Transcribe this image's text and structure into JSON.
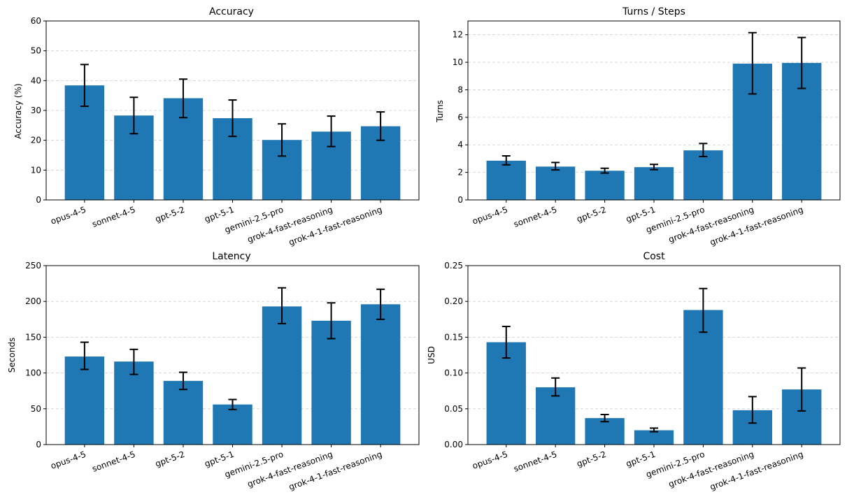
{
  "chart_data": [
    {
      "type": "bar",
      "title": "Accuracy",
      "xlabel": "",
      "ylabel": "Accuracy (%)",
      "ylim": [
        0,
        60
      ],
      "yticks": [
        0,
        10,
        20,
        30,
        40,
        50,
        60
      ],
      "ytick_labels": [
        "0",
        "10",
        "20",
        "30",
        "40",
        "50",
        "60"
      ],
      "grid": true,
      "color": "#1f77b4",
      "categories": [
        "opus-4-5",
        "sonnet-4-5",
        "gpt-5-2",
        "gpt-5-1",
        "gemini-2.5-pro",
        "grok-4-fast-reasoning",
        "grok-4-1-fast-reasoning"
      ],
      "values": [
        38.4,
        28.3,
        34.1,
        27.4,
        20.1,
        22.9,
        24.7
      ],
      "error_low": [
        31.4,
        22.2,
        27.6,
        21.3,
        14.7,
        17.9,
        20.0
      ],
      "error_high": [
        45.4,
        34.4,
        40.5,
        33.5,
        25.5,
        28.1,
        29.5
      ]
    },
    {
      "type": "bar",
      "title": "Turns / Steps",
      "xlabel": "",
      "ylabel": "Turns",
      "ylim": [
        0,
        13
      ],
      "yticks": [
        0,
        2,
        4,
        6,
        8,
        10,
        12
      ],
      "ytick_labels": [
        "0",
        "2",
        "4",
        "6",
        "8",
        "10",
        "12"
      ],
      "grid": true,
      "color": "#1f77b4",
      "categories": [
        "opus-4-5",
        "sonnet-4-5",
        "gpt-5-2",
        "gpt-5-1",
        "gemini-2.5-pro",
        "grok-4-fast-reasoning",
        "grok-4-1-fast-reasoning"
      ],
      "values": [
        2.85,
        2.42,
        2.12,
        2.38,
        3.6,
        9.9,
        9.95
      ],
      "error_low": [
        2.55,
        2.18,
        1.95,
        2.2,
        3.15,
        7.7,
        8.1
      ],
      "error_high": [
        3.2,
        2.72,
        2.3,
        2.58,
        4.1,
        12.15,
        11.8
      ]
    },
    {
      "type": "bar",
      "title": "Latency",
      "xlabel": "",
      "ylabel": "Seconds",
      "ylim": [
        0,
        250
      ],
      "yticks": [
        0,
        50,
        100,
        150,
        200,
        250
      ],
      "ytick_labels": [
        "0",
        "50",
        "100",
        "150",
        "200",
        "250"
      ],
      "grid": true,
      "color": "#1f77b4",
      "categories": [
        "opus-4-5",
        "sonnet-4-5",
        "gpt-5-2",
        "gpt-5-1",
        "gemini-2.5-pro",
        "grok-4-fast-reasoning",
        "grok-4-1-fast-reasoning"
      ],
      "values": [
        123,
        116,
        89,
        56,
        193,
        173,
        196
      ],
      "error_low": [
        105,
        98,
        77,
        49,
        169,
        148,
        175
      ],
      "error_high": [
        143,
        133,
        101,
        63,
        219,
        198,
        217
      ]
    },
    {
      "type": "bar",
      "title": "Cost",
      "xlabel": "",
      "ylabel": "USD",
      "ylim": [
        0,
        0.25
      ],
      "yticks": [
        0,
        0.05,
        0.1,
        0.15,
        0.2,
        0.25
      ],
      "ytick_labels": [
        "0.00",
        "0.05",
        "0.10",
        "0.15",
        "0.20",
        "0.25"
      ],
      "grid": true,
      "color": "#1f77b4",
      "categories": [
        "opus-4-5",
        "sonnet-4-5",
        "gpt-5-2",
        "gpt-5-1",
        "gemini-2.5-pro",
        "grok-4-fast-reasoning",
        "grok-4-1-fast-reasoning"
      ],
      "values": [
        0.143,
        0.08,
        0.037,
        0.02,
        0.188,
        0.048,
        0.077
      ],
      "error_low": [
        0.121,
        0.068,
        0.032,
        0.018,
        0.157,
        0.03,
        0.047
      ],
      "error_high": [
        0.165,
        0.093,
        0.042,
        0.023,
        0.218,
        0.067,
        0.107
      ]
    }
  ]
}
